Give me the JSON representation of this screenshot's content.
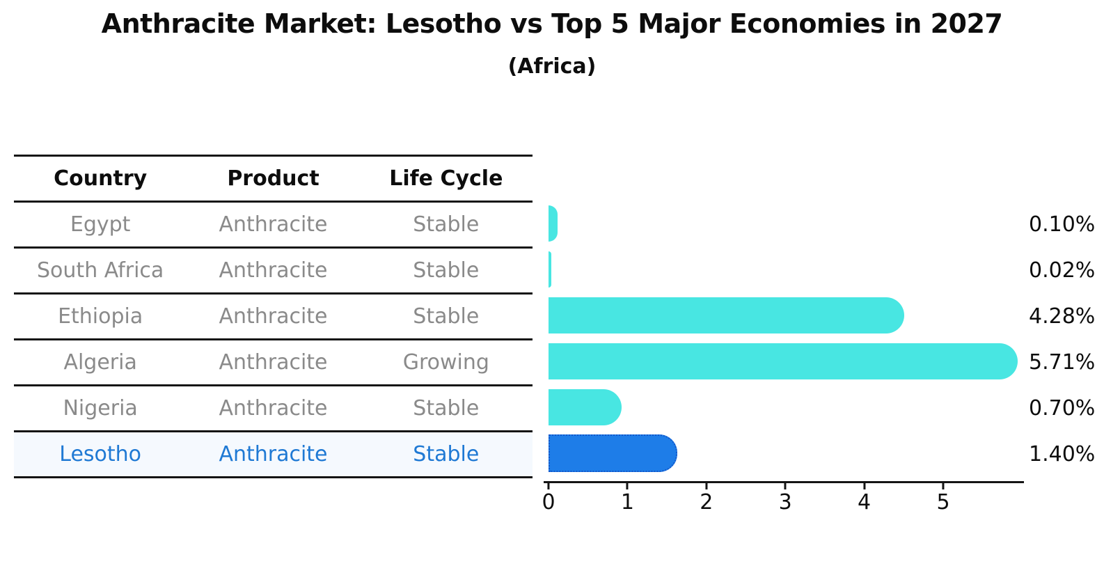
{
  "header": {
    "title": "Anthracite Market: Lesotho vs Top 5 Major Economies in 2027",
    "subtitle": "(Africa)"
  },
  "table": {
    "columns": [
      "Country",
      "Product",
      "Life Cycle"
    ],
    "rows": [
      {
        "country": "Egypt",
        "product": "Anthracite",
        "life_cycle": "Stable",
        "highlight": false
      },
      {
        "country": "South Africa",
        "product": "Anthracite",
        "life_cycle": "Stable",
        "highlight": false
      },
      {
        "country": "Ethiopia",
        "product": "Anthracite",
        "life_cycle": "Stable",
        "highlight": false
      },
      {
        "country": "Algeria",
        "product": "Anthracite",
        "life_cycle": "Growing",
        "highlight": false
      },
      {
        "country": "Nigeria",
        "product": "Anthracite",
        "life_cycle": "Stable",
        "highlight": false
      },
      {
        "country": "Lesotho",
        "product": "Anthracite",
        "life_cycle": "Stable",
        "highlight": true
      }
    ]
  },
  "chart_data": {
    "type": "bar",
    "orientation": "horizontal",
    "title": "Anthracite Market: Lesotho vs Top 5 Major Economies in 2027",
    "subtitle": "(Africa)",
    "categories": [
      "Egypt",
      "South Africa",
      "Ethiopia",
      "Algeria",
      "Nigeria",
      "Lesotho"
    ],
    "values": [
      0.1,
      0.02,
      4.28,
      5.71,
      0.7,
      1.4
    ],
    "labels": [
      "0.10%",
      "0.02%",
      "4.28%",
      "5.71%",
      "0.70%",
      "1.40%"
    ],
    "highlight_index": 5,
    "xlabel": "",
    "ylabel": "",
    "xlim": [
      0,
      6
    ],
    "xticks": [
      0,
      1,
      2,
      3,
      4,
      5
    ],
    "grid": false,
    "legend": false
  },
  "colors": {
    "bar_teal": "#48e6e2",
    "bar_highlight_blue": "#1e7de8",
    "bar_highlight_border": "#1356c9",
    "highlight_text_blue": "#1f79d4",
    "table_text_gray": "#8a8a8a",
    "ink_black": "#0d0d0d",
    "background": "#ffffff"
  }
}
